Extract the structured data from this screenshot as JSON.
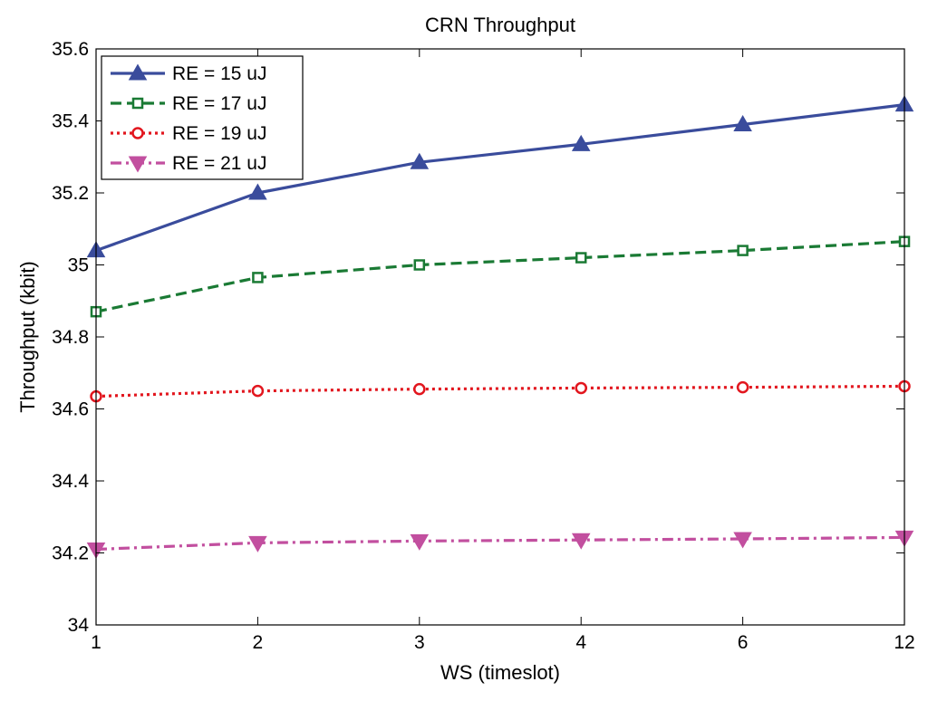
{
  "chart_data": {
    "type": "line",
    "title": "CRN Throughput",
    "xlabel": "WS (timeslot)",
    "ylabel": "Throughput (kbit)",
    "categories": [
      "1",
      "2",
      "3",
      "4",
      "6",
      "12"
    ],
    "ylim": [
      34,
      35.6
    ],
    "yticks": [
      34,
      34.2,
      34.4,
      34.6,
      34.8,
      35,
      35.2,
      35.4,
      35.6
    ],
    "ytick_labels": [
      "34",
      "34.2",
      "34.4",
      "34.6",
      "34.8",
      "35",
      "35.2",
      "35.4",
      "35.6"
    ],
    "grid": false,
    "legend_position": "top-left",
    "series": [
      {
        "name": "RE = 15 uJ",
        "values": [
          35.04,
          35.2,
          35.285,
          35.335,
          35.39,
          35.445
        ],
        "color": "#3a4c9c",
        "dash": "solid",
        "marker": "triangle-up"
      },
      {
        "name": "RE = 17 uJ",
        "values": [
          34.87,
          34.965,
          35.0,
          35.02,
          35.04,
          35.065
        ],
        "color": "#1a7a34",
        "dash": "dashed",
        "marker": "square"
      },
      {
        "name": "RE = 19 uJ",
        "values": [
          34.635,
          34.65,
          34.655,
          34.658,
          34.66,
          34.663
        ],
        "color": "#e2161e",
        "dash": "dotted",
        "marker": "circle"
      },
      {
        "name": "RE = 21 uJ",
        "values": [
          34.21,
          34.228,
          34.233,
          34.236,
          34.239,
          34.243
        ],
        "color": "#c24f9f",
        "dash": "dashdot",
        "marker": "triangle-down"
      }
    ]
  }
}
